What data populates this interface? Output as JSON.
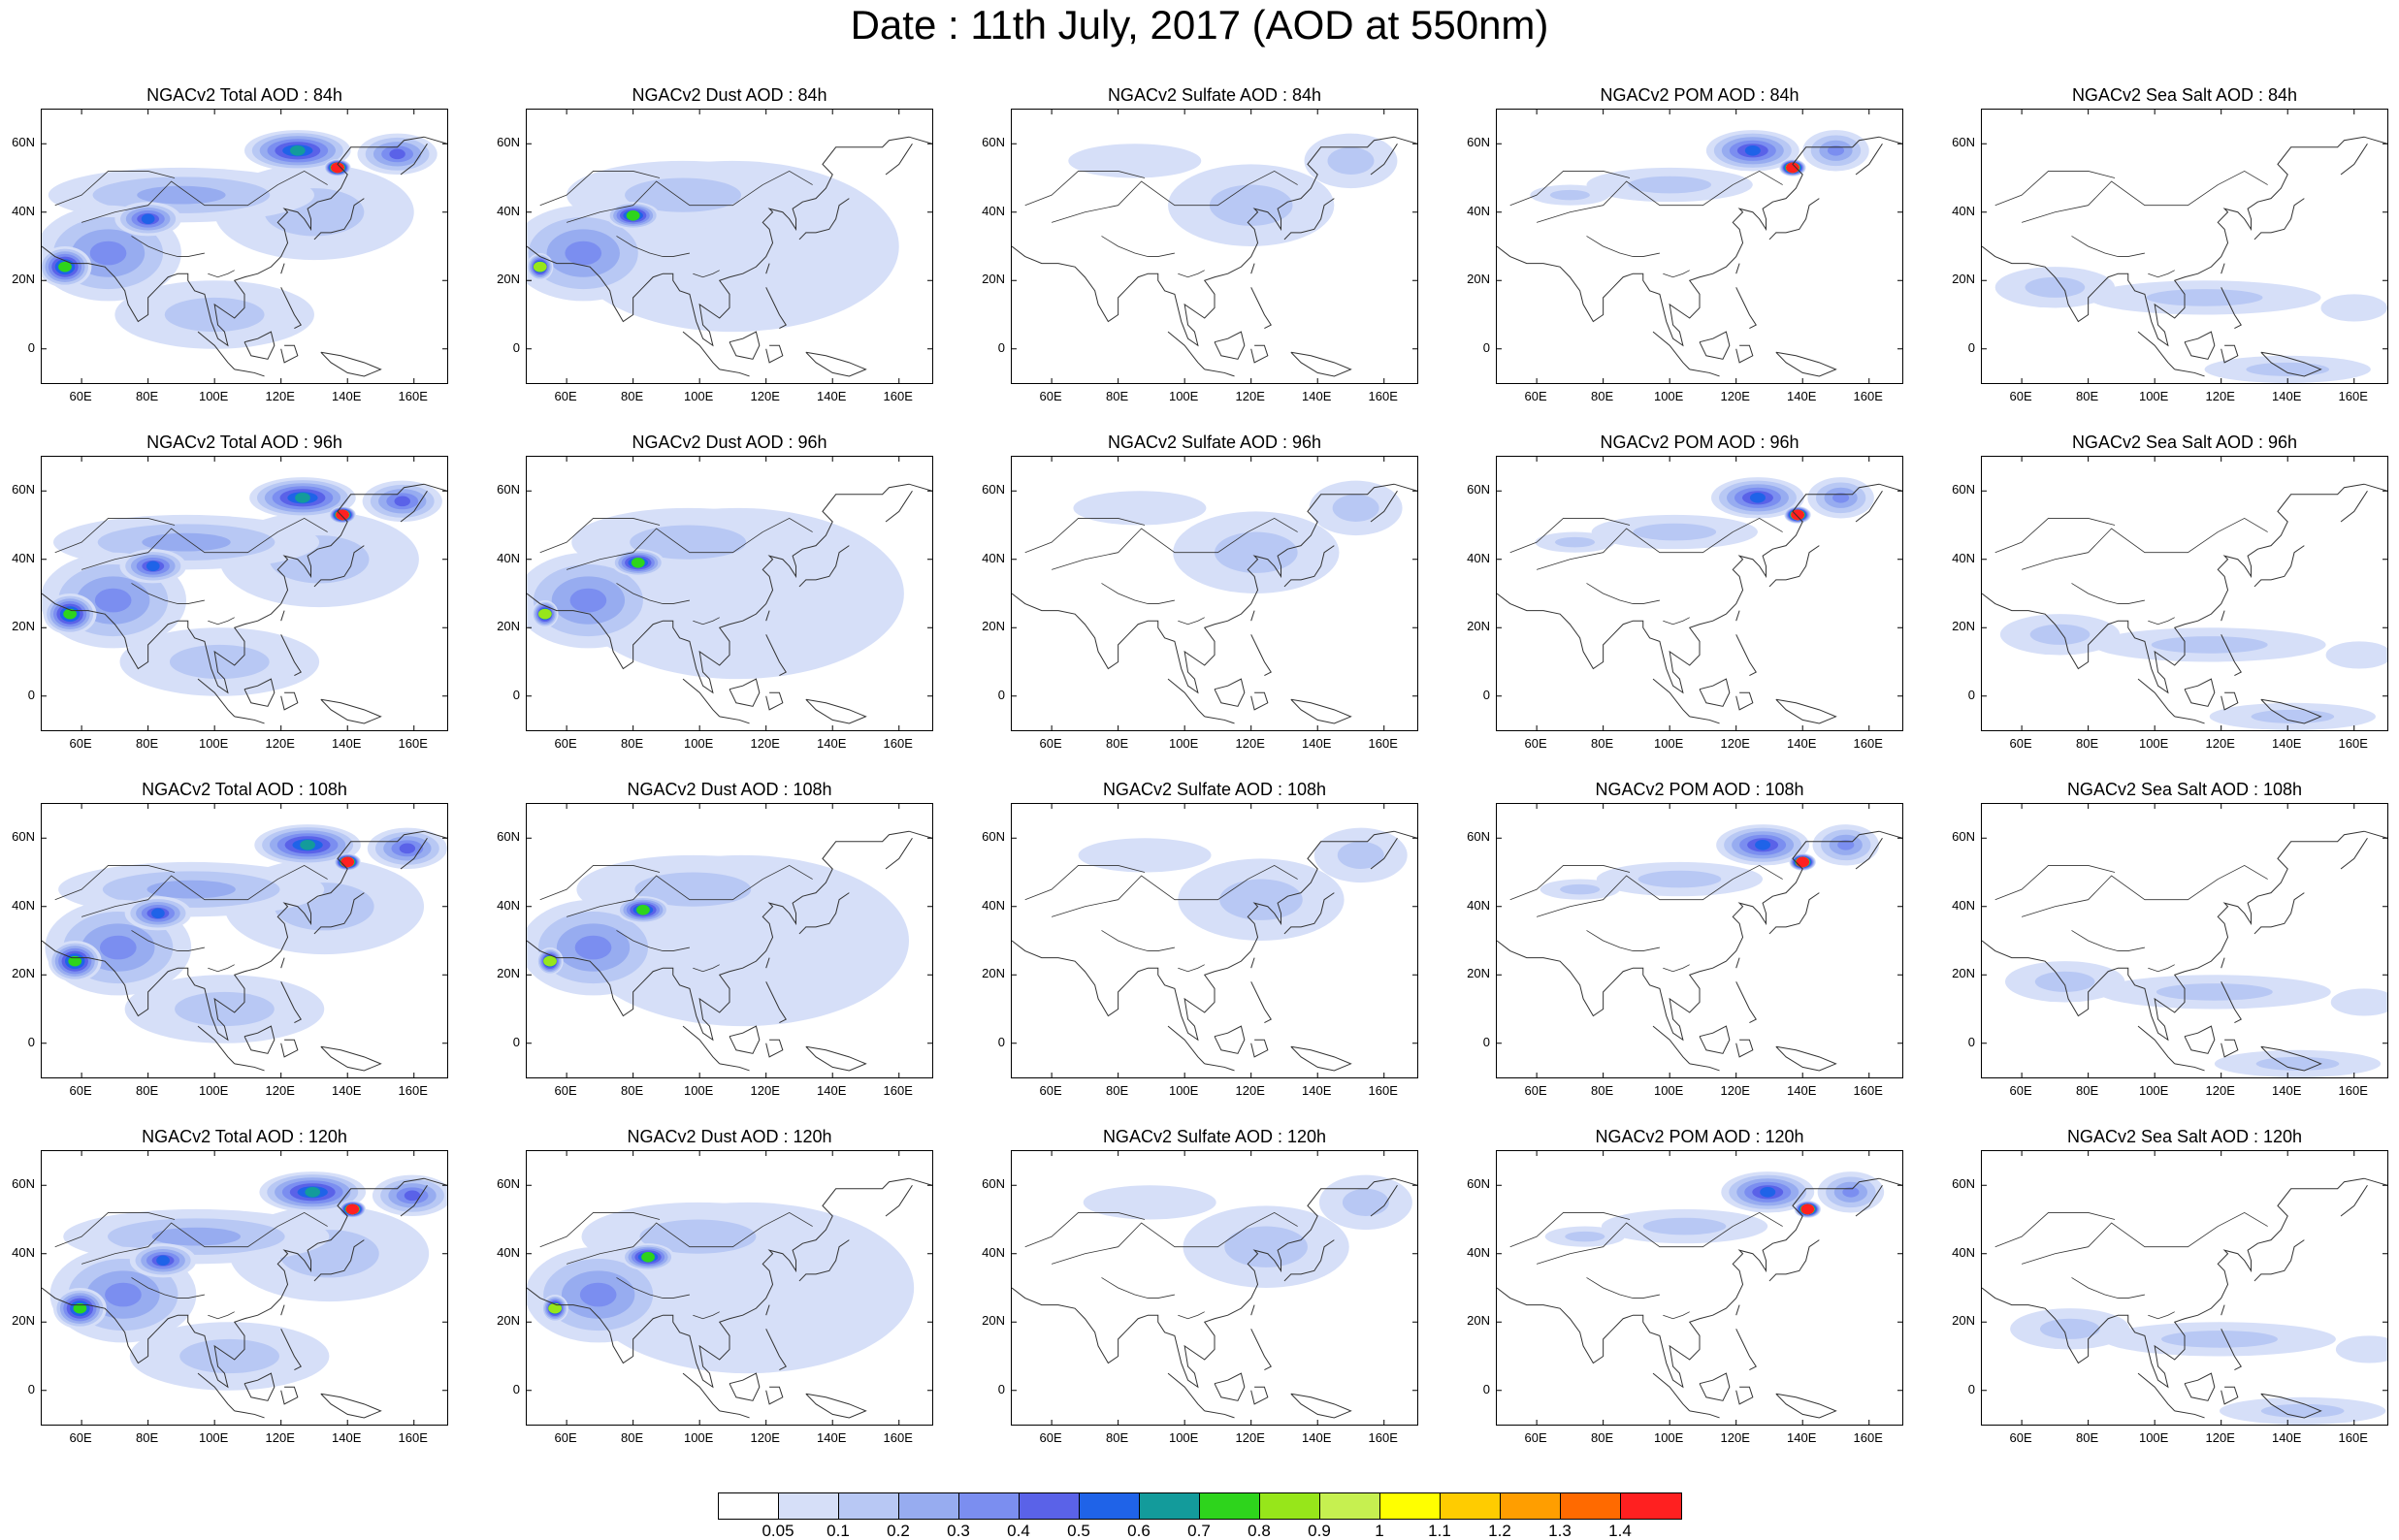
{
  "title": "Date : 11th July, 2017 (AOD at 550nm)",
  "map": {
    "lon_range": [
      48,
      170
    ],
    "lat_range": [
      -10,
      70
    ],
    "x_ticks": [
      "60E",
      "80E",
      "100E",
      "120E",
      "140E",
      "160E"
    ],
    "x_tick_values": [
      60,
      80,
      100,
      120,
      140,
      160
    ],
    "y_ticks": [
      "60N",
      "40N",
      "20N",
      "0"
    ],
    "y_tick_values": [
      60,
      40,
      20,
      0
    ]
  },
  "rows": [
    {
      "lead": "84h",
      "titles": [
        "NGACv2 Total AOD : 84h",
        "NGACv2 Dust AOD : 84h",
        "NGACv2 Sulfate AOD : 84h",
        "NGACv2 POM AOD : 84h",
        "NGACv2 Sea Salt AOD : 84h"
      ]
    },
    {
      "lead": "96h",
      "titles": [
        "NGACv2 Total AOD : 96h",
        "NGACv2 Dust AOD : 96h",
        "NGACv2 Sulfate AOD : 96h",
        "NGACv2 POM AOD : 96h",
        "NGACv2 Sea Salt AOD : 96h"
      ]
    },
    {
      "lead": "108h",
      "titles": [
        "NGACv2 Total AOD : 108h",
        "NGACv2 Dust AOD : 108h",
        "NGACv2 Sulfate AOD : 108h",
        "NGACv2 POM AOD : 108h",
        "NGACv2 Sea Salt AOD : 108h"
      ]
    },
    {
      "lead": "120h",
      "titles": [
        "NGACv2 Total AOD : 120h",
        "NGACv2 Dust AOD : 120h",
        "NGACv2 Sulfate AOD : 120h",
        "NGACv2 POM AOD : 120h",
        "NGACv2 Sea Salt  AOD : 120h"
      ]
    }
  ],
  "species": [
    "total",
    "dust",
    "sulfate",
    "pom",
    "seasalt"
  ],
  "colorbar": {
    "labels": [
      "0.05",
      "0.1",
      "0.2",
      "0.3",
      "0.4",
      "0.5",
      "0.6",
      "0.7",
      "0.8",
      "0.9",
      "1",
      "1.1",
      "1.2",
      "1.3",
      "1.4"
    ],
    "colors": [
      "#ffffff",
      "#d6dff8",
      "#b8c8f4",
      "#97acf0",
      "#7b8ef0",
      "#5a62e8",
      "#1f63e8",
      "#139b9b",
      "#2ed41c",
      "#97e61a",
      "#c6f050",
      "#ffff00",
      "#ffcc00",
      "#ff9e00",
      "#ff6a00",
      "#ff2020"
    ]
  },
  "chart_data": {
    "type": "heatmap",
    "variable": "AOD at 550nm",
    "date": "11th July, 2017",
    "panels_layout": "4 rows (forecast lead) x 5 columns (species)",
    "levels": [
      0.05,
      0.1,
      0.2,
      0.3,
      0.4,
      0.5,
      0.6,
      0.7,
      0.8,
      0.9,
      1,
      1.1,
      1.2,
      1.3,
      1.4
    ],
    "blobs": {
      "total": [
        {
          "lon": 68,
          "lat": 28,
          "rx": 22,
          "ry": 14,
          "v": 0.35
        },
        {
          "lon": 55,
          "lat": 24,
          "rx": 8,
          "ry": 6,
          "v": 0.78
        },
        {
          "lon": 80,
          "lat": 38,
          "rx": 10,
          "ry": 5,
          "v": 0.55
        },
        {
          "lon": 90,
          "lat": 45,
          "rx": 40,
          "ry": 8,
          "v": 0.25
        },
        {
          "lon": 125,
          "lat": 58,
          "rx": 16,
          "ry": 6,
          "v": 0.6
        },
        {
          "lon": 137,
          "lat": 53,
          "rx": 4,
          "ry": 2.5,
          "v": 1.4
        },
        {
          "lon": 155,
          "lat": 57,
          "rx": 12,
          "ry": 6,
          "v": 0.45
        },
        {
          "lon": 100,
          "lat": 10,
          "rx": 30,
          "ry": 10,
          "v": 0.15
        },
        {
          "lon": 130,
          "lat": 40,
          "rx": 30,
          "ry": 14,
          "v": 0.18
        }
      ],
      "dust": [
        {
          "lon": 65,
          "lat": 28,
          "rx": 22,
          "ry": 14,
          "v": 0.32
        },
        {
          "lon": 80,
          "lat": 39,
          "rx": 8,
          "ry": 4,
          "v": 0.75
        },
        {
          "lon": 52,
          "lat": 24,
          "rx": 4,
          "ry": 4,
          "v": 0.8
        },
        {
          "lon": 95,
          "lat": 45,
          "rx": 35,
          "ry": 10,
          "v": 0.15
        },
        {
          "lon": 110,
          "lat": 30,
          "rx": 50,
          "ry": 25,
          "v": 0.08
        }
      ],
      "sulfate": [
        {
          "lon": 120,
          "lat": 42,
          "rx": 25,
          "ry": 12,
          "v": 0.12
        },
        {
          "lon": 150,
          "lat": 55,
          "rx": 14,
          "ry": 8,
          "v": 0.1
        },
        {
          "lon": 85,
          "lat": 55,
          "rx": 20,
          "ry": 5,
          "v": 0.07
        }
      ],
      "pom": [
        {
          "lon": 125,
          "lat": 58,
          "rx": 14,
          "ry": 6,
          "v": 0.5
        },
        {
          "lon": 137,
          "lat": 53,
          "rx": 4,
          "ry": 2.5,
          "v": 1.4
        },
        {
          "lon": 150,
          "lat": 58,
          "rx": 10,
          "ry": 6,
          "v": 0.35
        },
        {
          "lon": 100,
          "lat": 48,
          "rx": 25,
          "ry": 5,
          "v": 0.12
        },
        {
          "lon": 70,
          "lat": 45,
          "rx": 12,
          "ry": 3,
          "v": 0.1
        }
      ],
      "seasalt": [
        {
          "lon": 70,
          "lat": 18,
          "rx": 18,
          "ry": 6,
          "v": 0.12
        },
        {
          "lon": 115,
          "lat": 15,
          "rx": 35,
          "ry": 5,
          "v": 0.1
        },
        {
          "lon": 140,
          "lat": -6,
          "rx": 25,
          "ry": 4,
          "v": 0.1
        },
        {
          "lon": 160,
          "lat": 12,
          "rx": 10,
          "ry": 4,
          "v": 0.08
        }
      ]
    }
  }
}
